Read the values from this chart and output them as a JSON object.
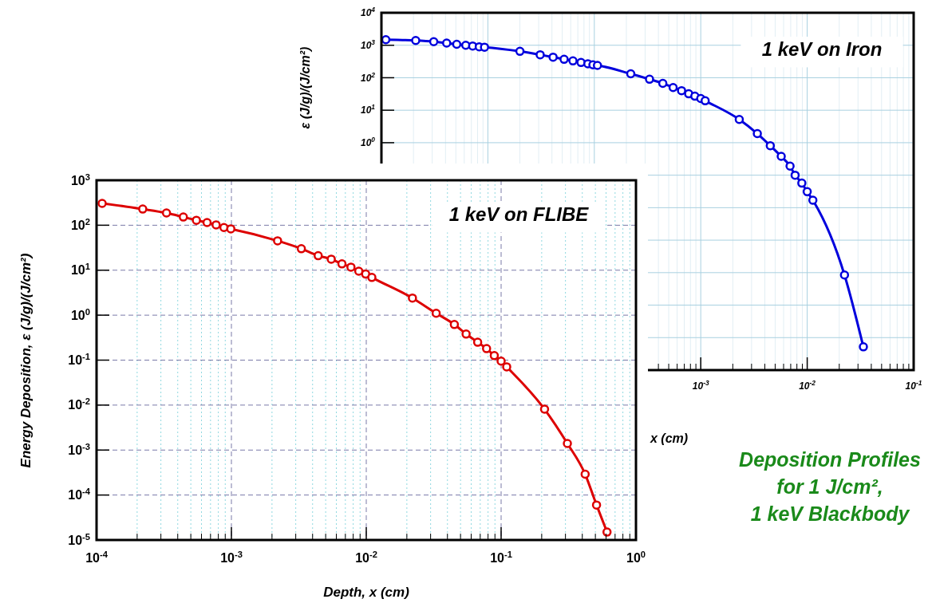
{
  "chart_data": [
    {
      "type": "line",
      "xlabel": "x (cm)",
      "ylabel": "ε (J/g)/(J/cm²)",
      "log": "xy",
      "grid": true,
      "marker": "circle",
      "line_style": "solid",
      "annotations": [
        "1 keV on Iron"
      ],
      "xlim": [
        1e-06,
        0.1
      ],
      "ylim": [
        1e-07,
        10000
      ],
      "xticks": [
        {
          "value": 1e-06,
          "label": null
        },
        {
          "value": 2e-06,
          "label": null
        },
        {
          "value": 3e-06,
          "label": null
        },
        {
          "value": 4e-06,
          "label": null
        },
        {
          "value": 5e-06,
          "label": null
        },
        {
          "value": 6e-06,
          "label": null
        },
        {
          "value": 7e-06,
          "label": null
        },
        {
          "value": 8e-06,
          "label": null
        },
        {
          "value": 9e-06,
          "label": null
        },
        {
          "value": 1e-05,
          "label": null
        },
        {
          "value": 2e-05,
          "label": null
        },
        {
          "value": 3e-05,
          "label": null
        },
        {
          "value": 4e-05,
          "label": null
        },
        {
          "value": 5e-05,
          "label": null
        },
        {
          "value": 6e-05,
          "label": null
        },
        {
          "value": 7e-05,
          "label": null
        },
        {
          "value": 8e-05,
          "label": null
        },
        {
          "value": 9e-05,
          "label": null
        },
        {
          "value": 0.0001,
          "label": null
        },
        {
          "value": 0.0002,
          "label": null
        },
        {
          "value": 0.0003,
          "label": null
        },
        {
          "value": 0.0004,
          "label": null
        },
        {
          "value": 0.0005,
          "label": null
        },
        {
          "value": 0.0006,
          "label": null
        },
        {
          "value": 0.0007,
          "label": null
        },
        {
          "value": 0.0008,
          "label": null
        },
        {
          "value": 0.0009,
          "label": null
        },
        {
          "value": 0.001,
          "label": "10$^{-3}$"
        },
        {
          "value": 0.002,
          "label": null
        },
        {
          "value": 0.003,
          "label": null
        },
        {
          "value": 0.004,
          "label": null
        },
        {
          "value": 0.005,
          "label": null
        },
        {
          "value": 0.006,
          "label": null
        },
        {
          "value": 0.007,
          "label": null
        },
        {
          "value": 0.008,
          "label": null
        },
        {
          "value": 0.009,
          "label": null
        },
        {
          "value": 0.01,
          "label": "10$^{-2}$"
        },
        {
          "value": 0.02,
          "label": null
        },
        {
          "value": 0.03,
          "label": null
        },
        {
          "value": 0.04,
          "label": null
        },
        {
          "value": 0.05,
          "label": null
        },
        {
          "value": 0.06,
          "label": null
        },
        {
          "value": 0.07,
          "label": null
        },
        {
          "value": 0.08,
          "label": null
        },
        {
          "value": 0.09,
          "label": null
        },
        {
          "value": 0.1,
          "label": "10$^{-1}$"
        }
      ],
      "yticks": [
        {
          "value": 1e-07,
          "label": null
        },
        {
          "value": 1e-06,
          "label": null
        },
        {
          "value": 1e-05,
          "label": null
        },
        {
          "value": 0.0001,
          "label": null
        },
        {
          "value": 0.001,
          "label": null
        },
        {
          "value": 0.01,
          "label": null
        },
        {
          "value": 0.1,
          "label": null
        },
        {
          "value": 1,
          "label": "10$^{0}$"
        },
        {
          "value": 10,
          "label": "10$^{1}$"
        },
        {
          "value": 100,
          "label": "10$^{2}$"
        },
        {
          "value": 1000,
          "label": "10$^{3}$"
        },
        {
          "value": 10000,
          "label": "10$^{4}$"
        }
      ],
      "series": [
        {
          "color": "#0000dd",
          "x": [
            1.1e-06,
            2.1e-06,
            3.1e-06,
            4.1e-06,
            5.1e-06,
            6.2e-06,
            7.2e-06,
            8.3e-06,
            9.3e-06,
            2e-05,
            3.1e-05,
            4.1e-05,
            5.2e-05,
            6.3e-05,
            7.5e-05,
            8.7e-05,
            9.7e-05,
            0.000107,
            0.00022,
            0.00033,
            0.00044,
            0.00055,
            0.00066,
            0.00077,
            0.00088,
            0.001,
            0.0011,
            0.0023,
            0.0034,
            0.0045,
            0.0057,
            0.0069,
            0.0077,
            0.0089,
            0.01,
            0.0113,
            0.0224,
            0.0337
          ],
          "values": [
            1480,
            1400,
            1290,
            1170,
            1070,
            1000,
            950,
            890,
            870,
            650,
            510,
            430,
            370,
            330,
            295,
            270,
            250,
            240,
            132,
            90,
            67,
            50,
            40,
            32,
            27,
            23,
            19.5,
            5.2,
            1.9,
            0.81,
            0.38,
            0.19,
            0.1,
            0.057,
            0.031,
            0.017,
            8.5e-05,
            5.2e-07
          ]
        }
      ]
    },
    {
      "type": "line",
      "xlabel": "Depth, x (cm)",
      "ylabel": "Energy Deposition, ε (J/g)/(J/cm²)",
      "log": "xy",
      "grid": true,
      "marker": "circle",
      "line_style": "solid",
      "annotations": [
        "1 keV on FLIBE",
        "Deposition Profiles for 1 J/cm², 1 keV Blackbody"
      ],
      "xlim": [
        0.0001,
        1
      ],
      "ylim": [
        1e-05,
        1000
      ],
      "xticks": [
        {
          "value": 0.0001,
          "label": "10$^{-4}$"
        },
        {
          "value": 0.0002,
          "label": null
        },
        {
          "value": 0.0003,
          "label": null
        },
        {
          "value": 0.0004,
          "label": null
        },
        {
          "value": 0.0005,
          "label": null
        },
        {
          "value": 0.0006,
          "label": null
        },
        {
          "value": 0.0007,
          "label": null
        },
        {
          "value": 0.0008,
          "label": null
        },
        {
          "value": 0.0009,
          "label": null
        },
        {
          "value": 0.001,
          "label": "10$^{-3}$"
        },
        {
          "value": 0.002,
          "label": null
        },
        {
          "value": 0.003,
          "label": null
        },
        {
          "value": 0.004,
          "label": null
        },
        {
          "value": 0.005,
          "label": null
        },
        {
          "value": 0.006,
          "label": null
        },
        {
          "value": 0.007,
          "label": null
        },
        {
          "value": 0.008,
          "label": null
        },
        {
          "value": 0.009,
          "label": null
        },
        {
          "value": 0.01,
          "label": "10$^{-2}$"
        },
        {
          "value": 0.02,
          "label": null
        },
        {
          "value": 0.03,
          "label": null
        },
        {
          "value": 0.04,
          "label": null
        },
        {
          "value": 0.05,
          "label": null
        },
        {
          "value": 0.06,
          "label": null
        },
        {
          "value": 0.07,
          "label": null
        },
        {
          "value": 0.08,
          "label": null
        },
        {
          "value": 0.09,
          "label": null
        },
        {
          "value": 0.1,
          "label": "10$^{-1}$"
        },
        {
          "value": 0.2,
          "label": null
        },
        {
          "value": 0.3,
          "label": null
        },
        {
          "value": 0.4,
          "label": null
        },
        {
          "value": 0.5,
          "label": null
        },
        {
          "value": 0.6,
          "label": null
        },
        {
          "value": 0.7,
          "label": null
        },
        {
          "value": 0.8,
          "label": null
        },
        {
          "value": 0.9,
          "label": null
        },
        {
          "value": 1,
          "label": "10$^{0}$"
        }
      ],
      "yticks": [
        {
          "value": 1e-05,
          "label": "10$^{-5}$"
        },
        {
          "value": 0.0001,
          "label": "10$^{-4}$"
        },
        {
          "value": 0.001,
          "label": "10$^{-3}$"
        },
        {
          "value": 0.01,
          "label": "10$^{-2}$"
        },
        {
          "value": 0.1,
          "label": "10$^{-1}$"
        },
        {
          "value": 1,
          "label": "10$^{0}$"
        },
        {
          "value": 10,
          "label": "10$^{1}$"
        },
        {
          "value": 100,
          "label": "10$^{2}$"
        },
        {
          "value": 1000,
          "label": "10$^{3}$"
        }
      ],
      "series": [
        {
          "color": "#dd0000",
          "x": [
            0.00011,
            0.00022,
            0.00033,
            0.00044,
            0.00055,
            0.00066,
            0.00077,
            0.00088,
            0.00099,
            0.0022,
            0.0033,
            0.0044,
            0.0055,
            0.0066,
            0.0077,
            0.0088,
            0.0099,
            0.011,
            0.022,
            0.033,
            0.045,
            0.055,
            0.067,
            0.078,
            0.089,
            0.1,
            0.11,
            0.21,
            0.31,
            0.42,
            0.51,
            0.61
          ],
          "values": [
            306,
            229,
            187,
            152,
            129,
            115,
            102,
            89,
            83,
            45,
            30,
            21,
            17.6,
            13.8,
            11.7,
            9.5,
            8.2,
            6.9,
            2.4,
            1.1,
            0.62,
            0.38,
            0.25,
            0.18,
            0.126,
            0.095,
            0.071,
            0.0081,
            0.0014,
            0.00029,
            6e-05,
            1.5e-05
          ]
        }
      ]
    }
  ]
}
